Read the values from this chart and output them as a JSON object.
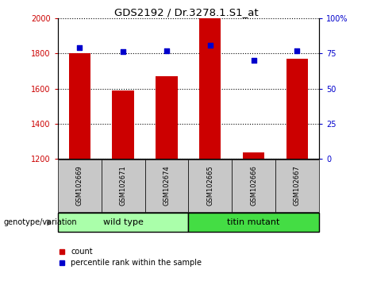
{
  "title": "GDS2192 / Dr.3278.1.S1_at",
  "samples": [
    "GSM102669",
    "GSM102671",
    "GSM102674",
    "GSM102665",
    "GSM102666",
    "GSM102667"
  ],
  "counts": [
    1800,
    1590,
    1670,
    2000,
    1235,
    1770
  ],
  "percentiles": [
    79,
    76,
    77,
    81,
    70,
    77
  ],
  "ylim_left": [
    1200,
    2000
  ],
  "ylim_right": [
    0,
    100
  ],
  "yticks_left": [
    1200,
    1400,
    1600,
    1800,
    2000
  ],
  "yticks_right": [
    0,
    25,
    50,
    75,
    100
  ],
  "ytick_labels_right": [
    "0",
    "25",
    "50",
    "75",
    "100%"
  ],
  "group_labels": [
    "wild type",
    "titin mutant"
  ],
  "group_colors": [
    "#AAFFAA",
    "#44DD44"
  ],
  "bar_color": "#CC0000",
  "dot_color": "#0000CC",
  "bar_width": 0.5,
  "left_axis_color": "#CC0000",
  "right_axis_color": "#0000CC",
  "legend_count_label": "count",
  "legend_percentile_label": "percentile rank within the sample",
  "genotype_label": "genotype/variation",
  "xtick_bg": "#C8C8C8"
}
